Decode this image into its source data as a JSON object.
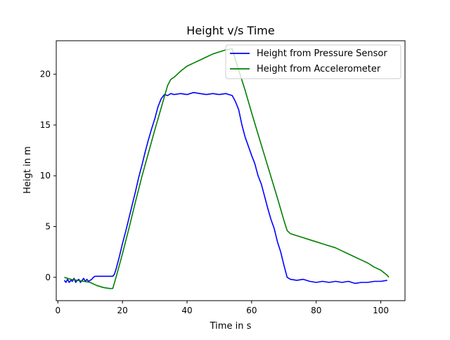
{
  "chart_data": {
    "type": "line",
    "title": "Height v/s Time",
    "xlabel": "Time in s",
    "ylabel": "Heigt in m",
    "xlim": [
      -0.5,
      107.5
    ],
    "ylim": [
      -2.3,
      23.3
    ],
    "xticks": [
      0,
      20,
      40,
      60,
      80,
      100
    ],
    "yticks": [
      0,
      5,
      10,
      15,
      20
    ],
    "grid": false,
    "legend_position": "upper right",
    "series": [
      {
        "name": "Height from Pressure Sensor",
        "color": "#0000ff",
        "x": [
          2.0,
          2.5,
          3.0,
          3.5,
          4.0,
          4.5,
          5.0,
          5.5,
          6.0,
          6.5,
          7.0,
          7.5,
          8.0,
          8.5,
          9.0,
          9.5,
          10.0,
          10.5,
          11.0,
          11.5,
          12.0,
          13.0,
          14.0,
          15.0,
          16.0,
          17.0,
          17.5,
          18.0,
          19.0,
          20.0,
          21.0,
          22.0,
          23.0,
          24.0,
          25.0,
          26.0,
          27.0,
          28.0,
          29.0,
          30.0,
          31.0,
          32.0,
          33.0,
          34.0,
          35.0,
          36.0,
          38.0,
          40.0,
          42.0,
          44.0,
          46.0,
          48.0,
          50.0,
          52.0,
          53.0,
          54.0,
          55.0,
          56.0,
          57.0,
          58.0,
          59.0,
          60.0,
          61.0,
          62.0,
          63.0,
          64.0,
          65.0,
          66.0,
          67.0,
          68.0,
          69.0,
          70.0,
          71.0,
          72.0,
          74.0,
          76.0,
          78.0,
          80.0,
          82.0,
          84.0,
          86.0,
          88.0,
          90.0,
          92.0,
          94.0,
          96.0,
          98.0,
          100.0,
          102.0
        ],
        "y": [
          -0.3,
          -0.5,
          -0.2,
          -0.5,
          -0.3,
          -0.4,
          -0.1,
          -0.5,
          -0.3,
          -0.2,
          -0.5,
          -0.3,
          -0.1,
          -0.4,
          -0.2,
          -0.4,
          -0.3,
          -0.2,
          0.0,
          0.1,
          0.1,
          0.1,
          0.1,
          0.1,
          0.1,
          0.1,
          0.3,
          0.8,
          2.0,
          3.3,
          4.5,
          5.8,
          7.1,
          8.4,
          9.8,
          11.0,
          12.3,
          13.5,
          14.6,
          15.6,
          16.8,
          17.6,
          18.0,
          17.9,
          18.1,
          18.0,
          18.1,
          18.0,
          18.2,
          18.1,
          18.0,
          18.1,
          18.0,
          18.1,
          18.0,
          17.9,
          17.3,
          16.5,
          15.0,
          13.8,
          12.9,
          12.0,
          11.2,
          10.0,
          9.2,
          8.0,
          6.8,
          5.7,
          4.8,
          3.5,
          2.5,
          1.2,
          0.0,
          -0.2,
          -0.3,
          -0.2,
          -0.4,
          -0.5,
          -0.4,
          -0.5,
          -0.4,
          -0.5,
          -0.4,
          -0.6,
          -0.5,
          -0.5,
          -0.4,
          -0.4,
          -0.3
        ]
      },
      {
        "name": "Height from Accelerometer",
        "color": "#008000",
        "x": [
          2.0,
          4.0,
          6.0,
          8.0,
          10.0,
          12.0,
          14.0,
          16.0,
          17.0,
          18.0,
          20.0,
          22.0,
          24.0,
          26.0,
          28.0,
          30.0,
          32.0,
          34.0,
          35.0,
          36.0,
          38.0,
          40.0,
          42.0,
          44.0,
          46.0,
          48.0,
          50.0,
          52.0,
          54.0,
          56.0,
          58.0,
          60.0,
          62.0,
          64.0,
          66.0,
          68.0,
          70.0,
          71.0,
          72.0,
          74.0,
          76.0,
          78.0,
          80.0,
          82.0,
          84.0,
          86.0,
          88.0,
          90.0,
          92.0,
          94.0,
          96.0,
          98.0,
          100.0,
          102.0,
          102.5
        ],
        "y": [
          0.0,
          -0.2,
          -0.3,
          -0.4,
          -0.5,
          -0.8,
          -1.0,
          -1.1,
          -1.1,
          0.0,
          2.3,
          4.8,
          7.4,
          9.9,
          12.2,
          14.5,
          16.7,
          18.9,
          19.5,
          19.7,
          20.3,
          20.8,
          21.1,
          21.4,
          21.7,
          22.0,
          22.2,
          22.4,
          22.5,
          20.4,
          18.4,
          16.2,
          14.1,
          12.0,
          9.9,
          7.8,
          5.6,
          4.6,
          4.3,
          4.1,
          3.9,
          3.7,
          3.5,
          3.3,
          3.1,
          2.9,
          2.6,
          2.3,
          2.0,
          1.7,
          1.4,
          1.0,
          0.7,
          0.2,
          0.0
        ]
      }
    ]
  }
}
